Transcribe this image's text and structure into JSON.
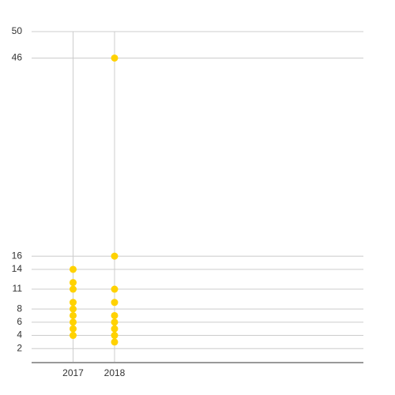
{
  "chart_data": {
    "type": "scatter",
    "series": [
      {
        "color": "#ffd200",
        "x": [
          2017,
          2017,
          2017,
          2017,
          2017,
          2017,
          2017,
          2017,
          2017,
          2018,
          2018,
          2018,
          2018,
          2018,
          2018,
          2018,
          2018,
          2018
        ],
        "values": [
          14,
          12,
          11,
          9,
          8,
          7,
          6,
          5,
          4,
          46,
          16,
          11,
          9,
          7,
          6,
          5,
          4,
          3
        ]
      }
    ],
    "xlim": [
      2016,
      2024
    ],
    "xticks": [
      2017,
      2018
    ],
    "ylim": [
      0,
      50
    ],
    "yticks": [
      2,
      4,
      6,
      8,
      11,
      14,
      16,
      46,
      50
    ],
    "grid": true
  }
}
